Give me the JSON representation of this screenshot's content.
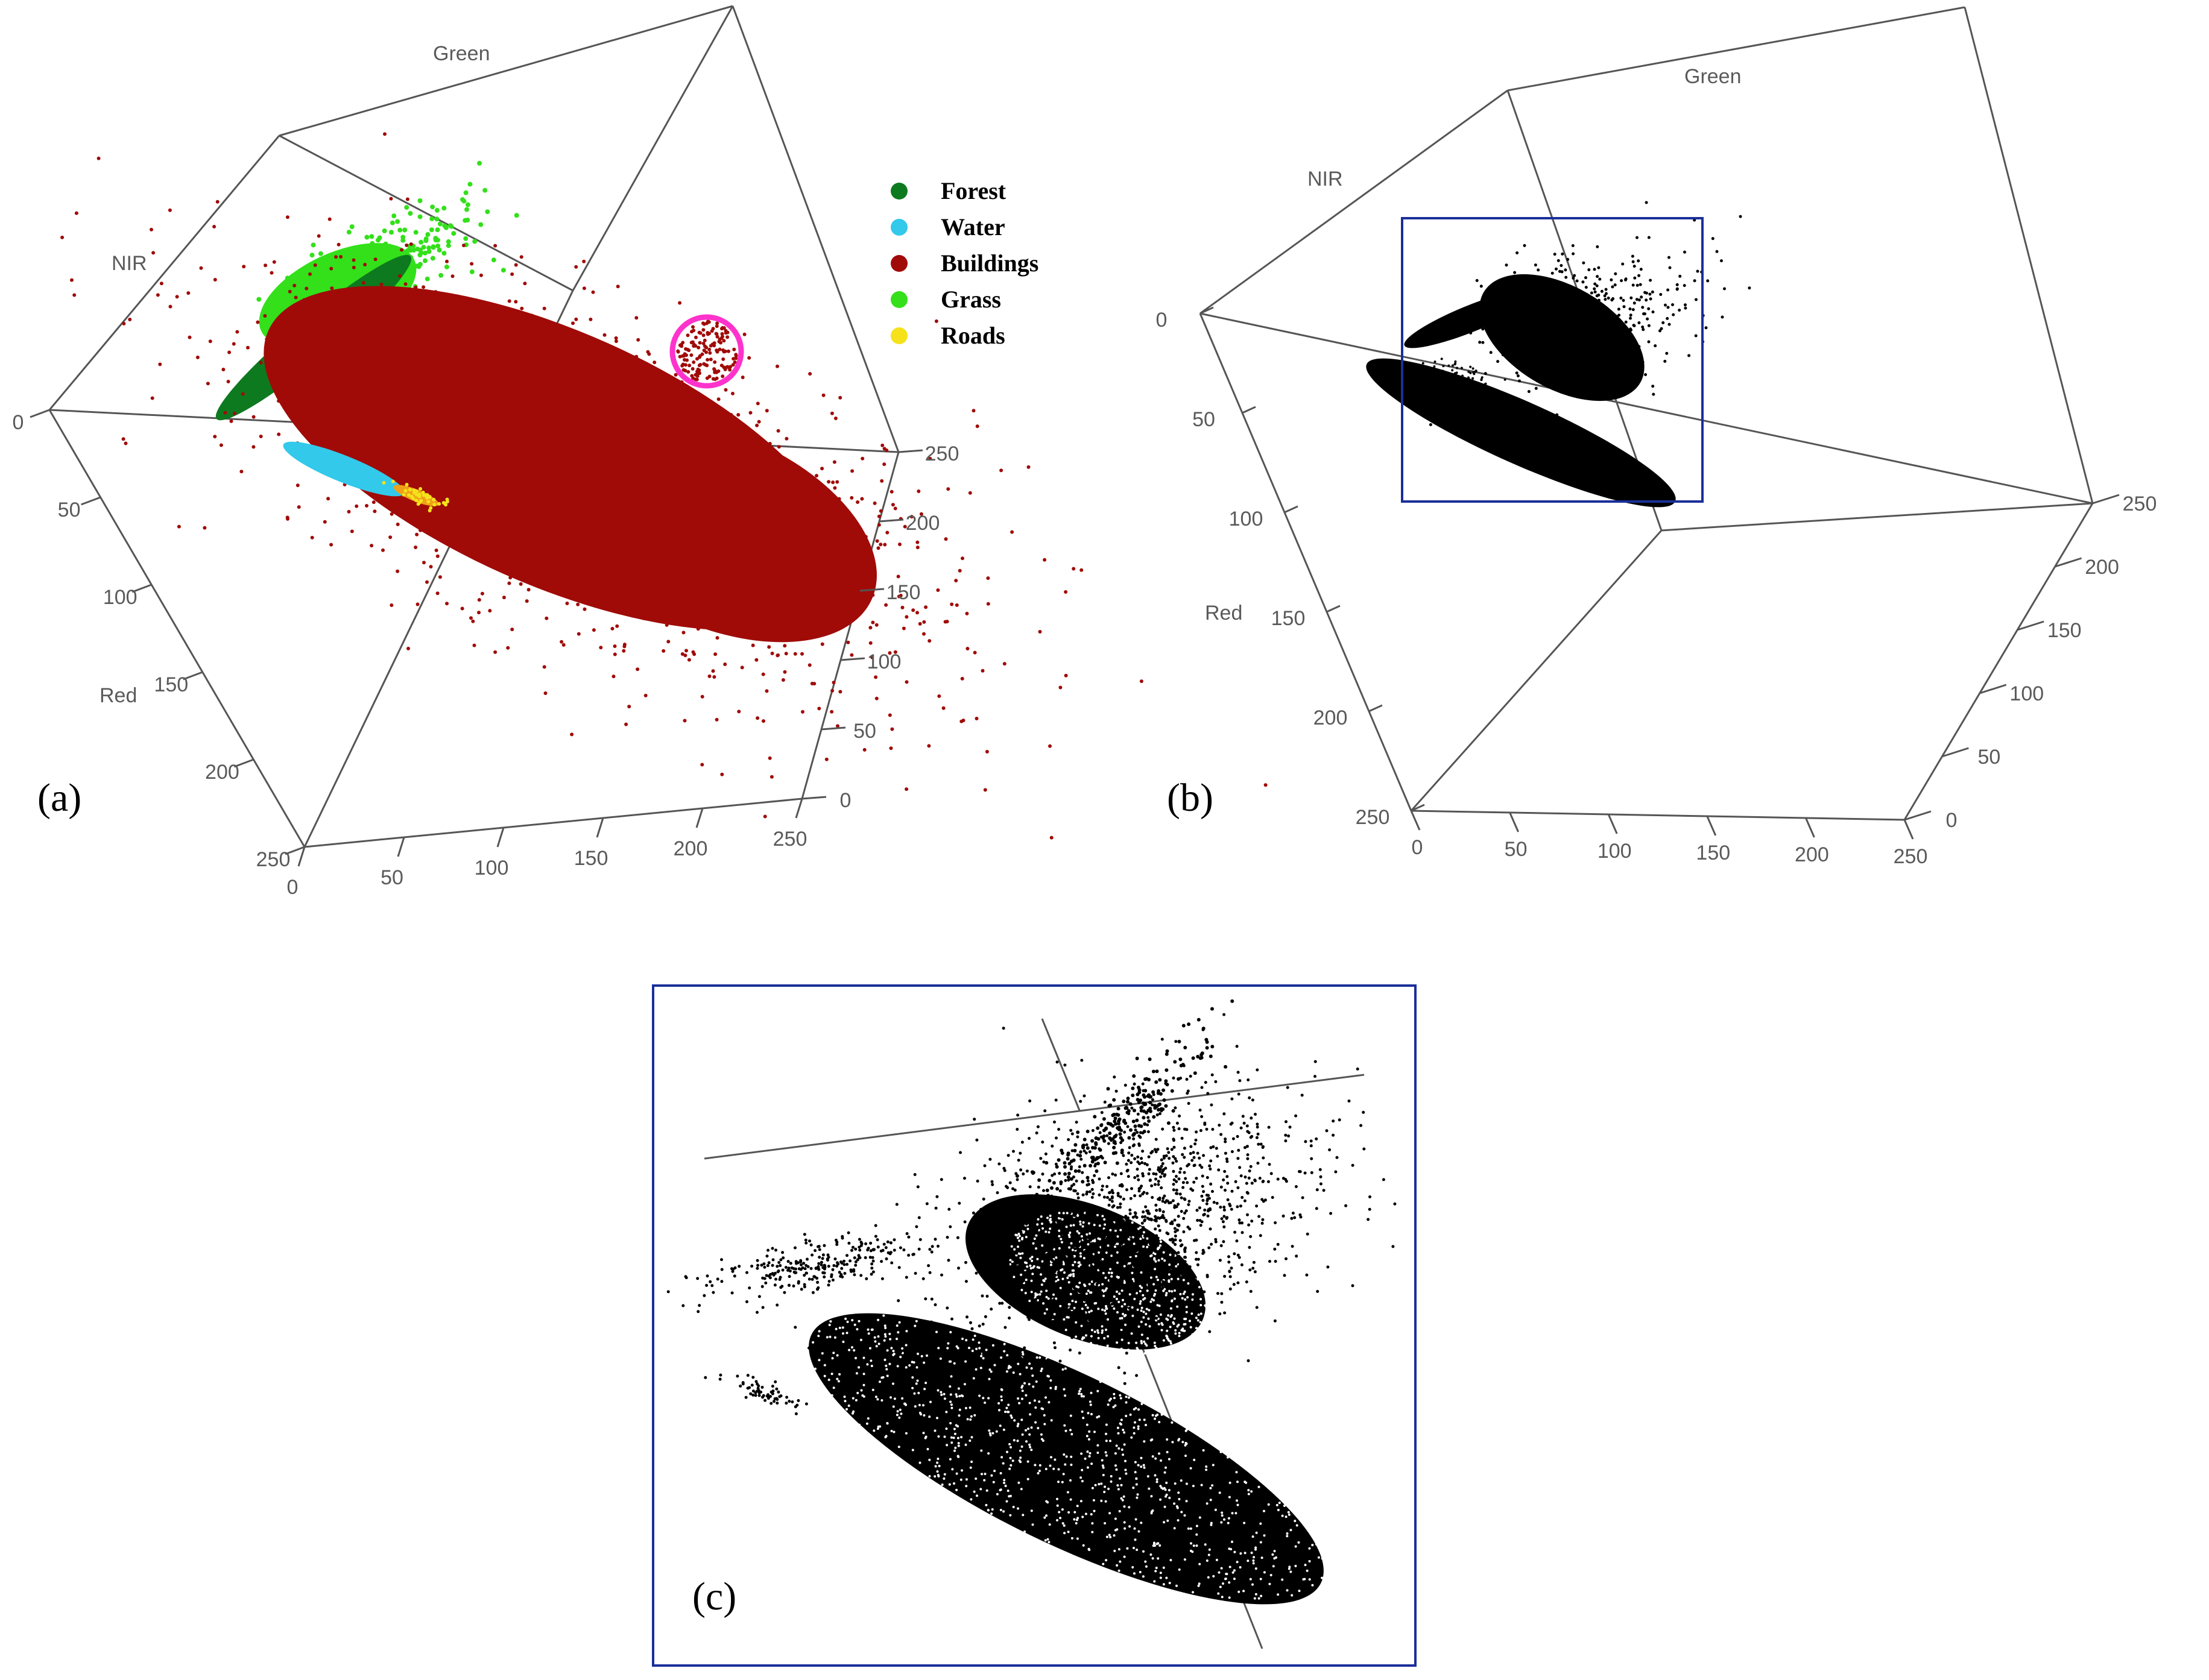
{
  "chart_data": [
    {
      "type": "scatter",
      "panel": "a",
      "panel_label": "(a)",
      "title": "",
      "axes": {
        "green": {
          "label": "Green",
          "ticks": [
            "0",
            "50",
            "100",
            "150",
            "200",
            "250"
          ],
          "range": [
            0,
            255
          ]
        },
        "nir": {
          "label": "NIR",
          "ticks": [
            "0",
            "50",
            "100",
            "150",
            "200",
            "250"
          ],
          "range": [
            0,
            255
          ]
        },
        "red": {
          "label": "Red",
          "ticks": [
            "0",
            "50",
            "100",
            "150",
            "200",
            "250"
          ],
          "range": [
            0,
            255
          ]
        }
      },
      "legend": {
        "placement": "top-right",
        "items": [
          {
            "name": "Forest",
            "color": "#0d7a1f"
          },
          {
            "name": "Water",
            "color": "#32c9ea"
          },
          {
            "name": "Buildings",
            "color": "#a00b08"
          },
          {
            "name": "Grass",
            "color": "#33e01a"
          },
          {
            "name": "Roads",
            "color": "#f5e21b"
          }
        ]
      },
      "highlight_color": "#ff33cc",
      "grid": false
    },
    {
      "type": "scatter",
      "panel": "b",
      "panel_label": "(b)",
      "title": "",
      "axes": {
        "green": {
          "label": "Green",
          "ticks": [
            "0",
            "50",
            "100",
            "150",
            "200",
            "250"
          ],
          "range": [
            0,
            255
          ]
        },
        "nir": {
          "label": "NIR",
          "ticks": [
            "0",
            "50",
            "100",
            "150",
            "200",
            "250"
          ],
          "range": [
            0,
            255
          ]
        },
        "red": {
          "label": "Red",
          "ticks": [
            "0",
            "50",
            "100",
            "150",
            "200",
            "250"
          ],
          "range": [
            0,
            255
          ]
        }
      },
      "point_color": "#000000",
      "zoom_box_color": "#1a2f9a",
      "grid": false
    },
    {
      "type": "scatter",
      "panel": "c",
      "panel_label": "(c)",
      "title": "",
      "description_color": "#000000",
      "frame_color": "#1a2f9a",
      "grid": false
    }
  ]
}
